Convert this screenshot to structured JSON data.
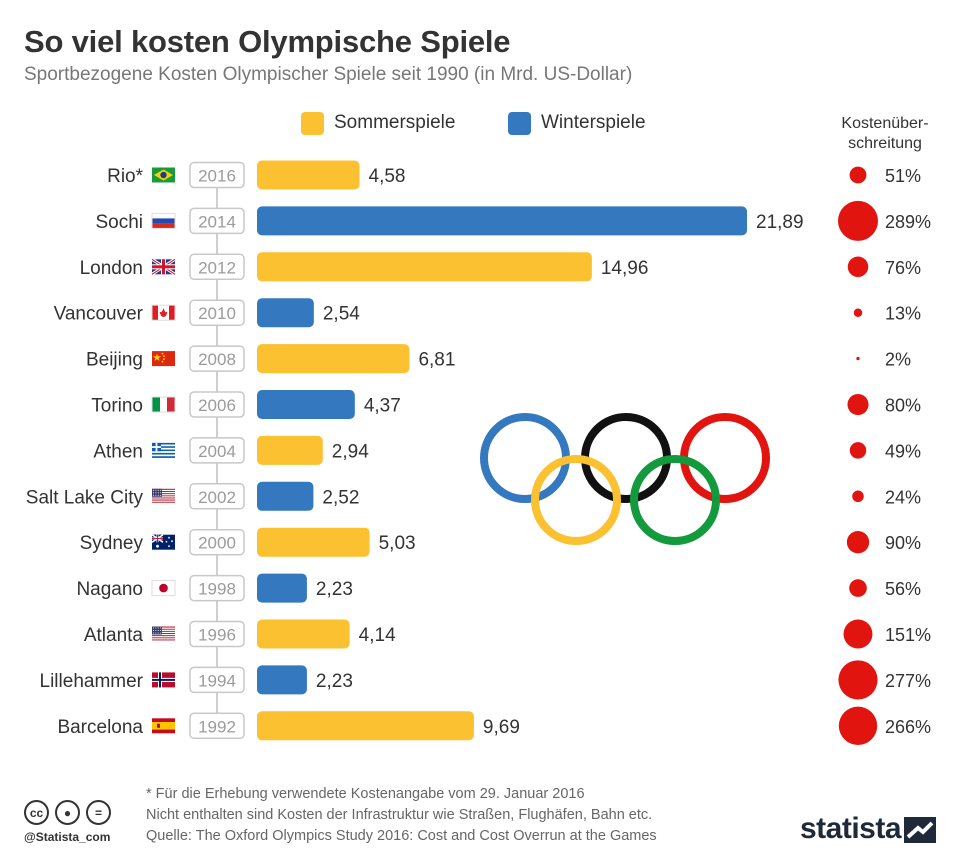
{
  "header": {
    "title": "So viel kosten Olympische Spiele",
    "subtitle": "Sportbezogene Kosten Olympischer Spiele seit 1990 (in Mrd. US-Dollar)"
  },
  "legend": {
    "summer_label": "Sommerspiele",
    "winter_label": "Winterspiele"
  },
  "overrun_header": [
    "Kostenüber-",
    "schreitung"
  ],
  "colors": {
    "summer": "#fcc130",
    "winter": "#3478bf",
    "overrun": "#e1140f",
    "year_border": "#c8c8c8",
    "year_text": "#9b9b9b"
  },
  "chart_data": {
    "type": "bar",
    "orientation": "horizontal",
    "title": "So viel kosten Olympische Spiele",
    "subtitle": "Sportbezogene Kosten Olympischer Spiele seit 1990 (in Mrd. US-Dollar)",
    "series_names": [
      "Sommerspiele",
      "Winterspiele"
    ],
    "rows": [
      {
        "city": "Rio*",
        "flag": "brazil-flag",
        "year": "2016",
        "season": "summer",
        "cost": 4.58,
        "cost_label": "4,58",
        "overrun": 51,
        "overrun_label": "51%"
      },
      {
        "city": "Sochi",
        "flag": "russia-flag",
        "year": "2014",
        "season": "winter",
        "cost": 21.89,
        "cost_label": "21,89",
        "overrun": 289,
        "overrun_label": "289%"
      },
      {
        "city": "London",
        "flag": "uk-flag",
        "year": "2012",
        "season": "summer",
        "cost": 14.96,
        "cost_label": "14,96",
        "overrun": 76,
        "overrun_label": "76%"
      },
      {
        "city": "Vancouver",
        "flag": "canada-flag",
        "year": "2010",
        "season": "winter",
        "cost": 2.54,
        "cost_label": "2,54",
        "overrun": 13,
        "overrun_label": "13%"
      },
      {
        "city": "Beijing",
        "flag": "china-flag",
        "year": "2008",
        "season": "summer",
        "cost": 6.81,
        "cost_label": "6,81",
        "overrun": 2,
        "overrun_label": "2%"
      },
      {
        "city": "Torino",
        "flag": "italy-flag",
        "year": "2006",
        "season": "winter",
        "cost": 4.37,
        "cost_label": "4,37",
        "overrun": 80,
        "overrun_label": "80%"
      },
      {
        "city": "Athen",
        "flag": "greece-flag",
        "year": "2004",
        "season": "summer",
        "cost": 2.94,
        "cost_label": "2,94",
        "overrun": 49,
        "overrun_label": "49%"
      },
      {
        "city": "Salt Lake City",
        "flag": "usa-flag",
        "year": "2002",
        "season": "winter",
        "cost": 2.52,
        "cost_label": "2,52",
        "overrun": 24,
        "overrun_label": "24%"
      },
      {
        "city": "Sydney",
        "flag": "australia-flag",
        "year": "2000",
        "season": "summer",
        "cost": 5.03,
        "cost_label": "5,03",
        "overrun": 90,
        "overrun_label": "90%"
      },
      {
        "city": "Nagano",
        "flag": "japan-flag",
        "year": "1998",
        "season": "winter",
        "cost": 2.23,
        "cost_label": "2,23",
        "overrun": 56,
        "overrun_label": "56%"
      },
      {
        "city": "Atlanta",
        "flag": "usa-flag",
        "year": "1996",
        "season": "summer",
        "cost": 4.14,
        "cost_label": "4,14",
        "overrun": 151,
        "overrun_label": "151%"
      },
      {
        "city": "Lillehammer",
        "flag": "norway-flag",
        "year": "1994",
        "season": "winter",
        "cost": 2.23,
        "cost_label": "2,23",
        "overrun": 277,
        "overrun_label": "277%"
      },
      {
        "city": "Barcelona",
        "flag": "spain-flag",
        "year": "1992",
        "season": "summer",
        "cost": 9.69,
        "cost_label": "9,69",
        "overrun": 266,
        "overrun_label": "266%"
      }
    ],
    "xlim": [
      0,
      21.89
    ],
    "grid": false,
    "legend_position": "top"
  },
  "decoration": {
    "icon": "olympic-rings-icon",
    "ring_colors": [
      "#3478bf",
      "#fcc130",
      "#111111",
      "#129a3d",
      "#e1140f"
    ]
  },
  "footnotes": {
    "line1": "* Für die Erhebung verwendete Kostenangabe vom 29. Januar 2016",
    "line2": "Nicht enthalten sind Kosten der Infrastruktur wie Straßen, Flughäfen, Bahn etc.",
    "line3": "Quelle: The Oxford Olympics Study 2016: Cost and Cost Overrun at the Games"
  },
  "footer": {
    "handle": "@Statista_com",
    "brand": "statista",
    "license_icons": [
      "cc-icon",
      "by-icon",
      "nd-icon"
    ]
  }
}
